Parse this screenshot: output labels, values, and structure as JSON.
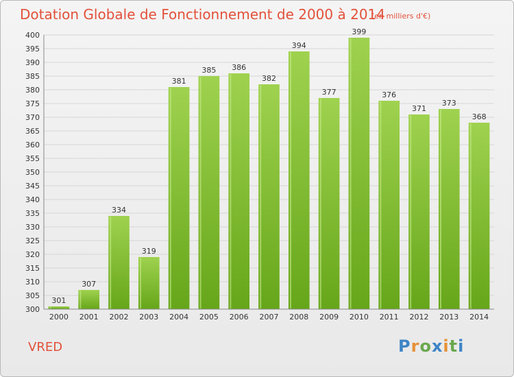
{
  "header": {
    "title": "Dotation Globale de Fonctionnement de 2000 à 2014",
    "unit": "(en milliers d'€)"
  },
  "footer": {
    "commune": "VRED",
    "logo": [
      "P",
      "r",
      "o",
      "x",
      "i",
      "t",
      "i"
    ]
  },
  "colors": {
    "bar_top": "#9fd24f",
    "bar_bottom": "#66a61a",
    "title": "#e2513a",
    "logo": [
      "#3d85c6",
      "#e69138",
      "#6aa84f",
      "#3d85c6",
      "#e69138",
      "#6aa84f",
      "#3d85c6"
    ]
  },
  "chart_data": {
    "type": "bar",
    "categories": [
      "2000",
      "2001",
      "2002",
      "2003",
      "2004",
      "2005",
      "2006",
      "2007",
      "2008",
      "2009",
      "2010",
      "2011",
      "2012",
      "2013",
      "2014"
    ],
    "values": [
      301,
      307,
      334,
      319,
      381,
      385,
      386,
      382,
      394,
      377,
      399,
      376,
      371,
      373,
      368
    ],
    "ylim": [
      300,
      400
    ],
    "ytick_step": 5,
    "grid": true
  }
}
